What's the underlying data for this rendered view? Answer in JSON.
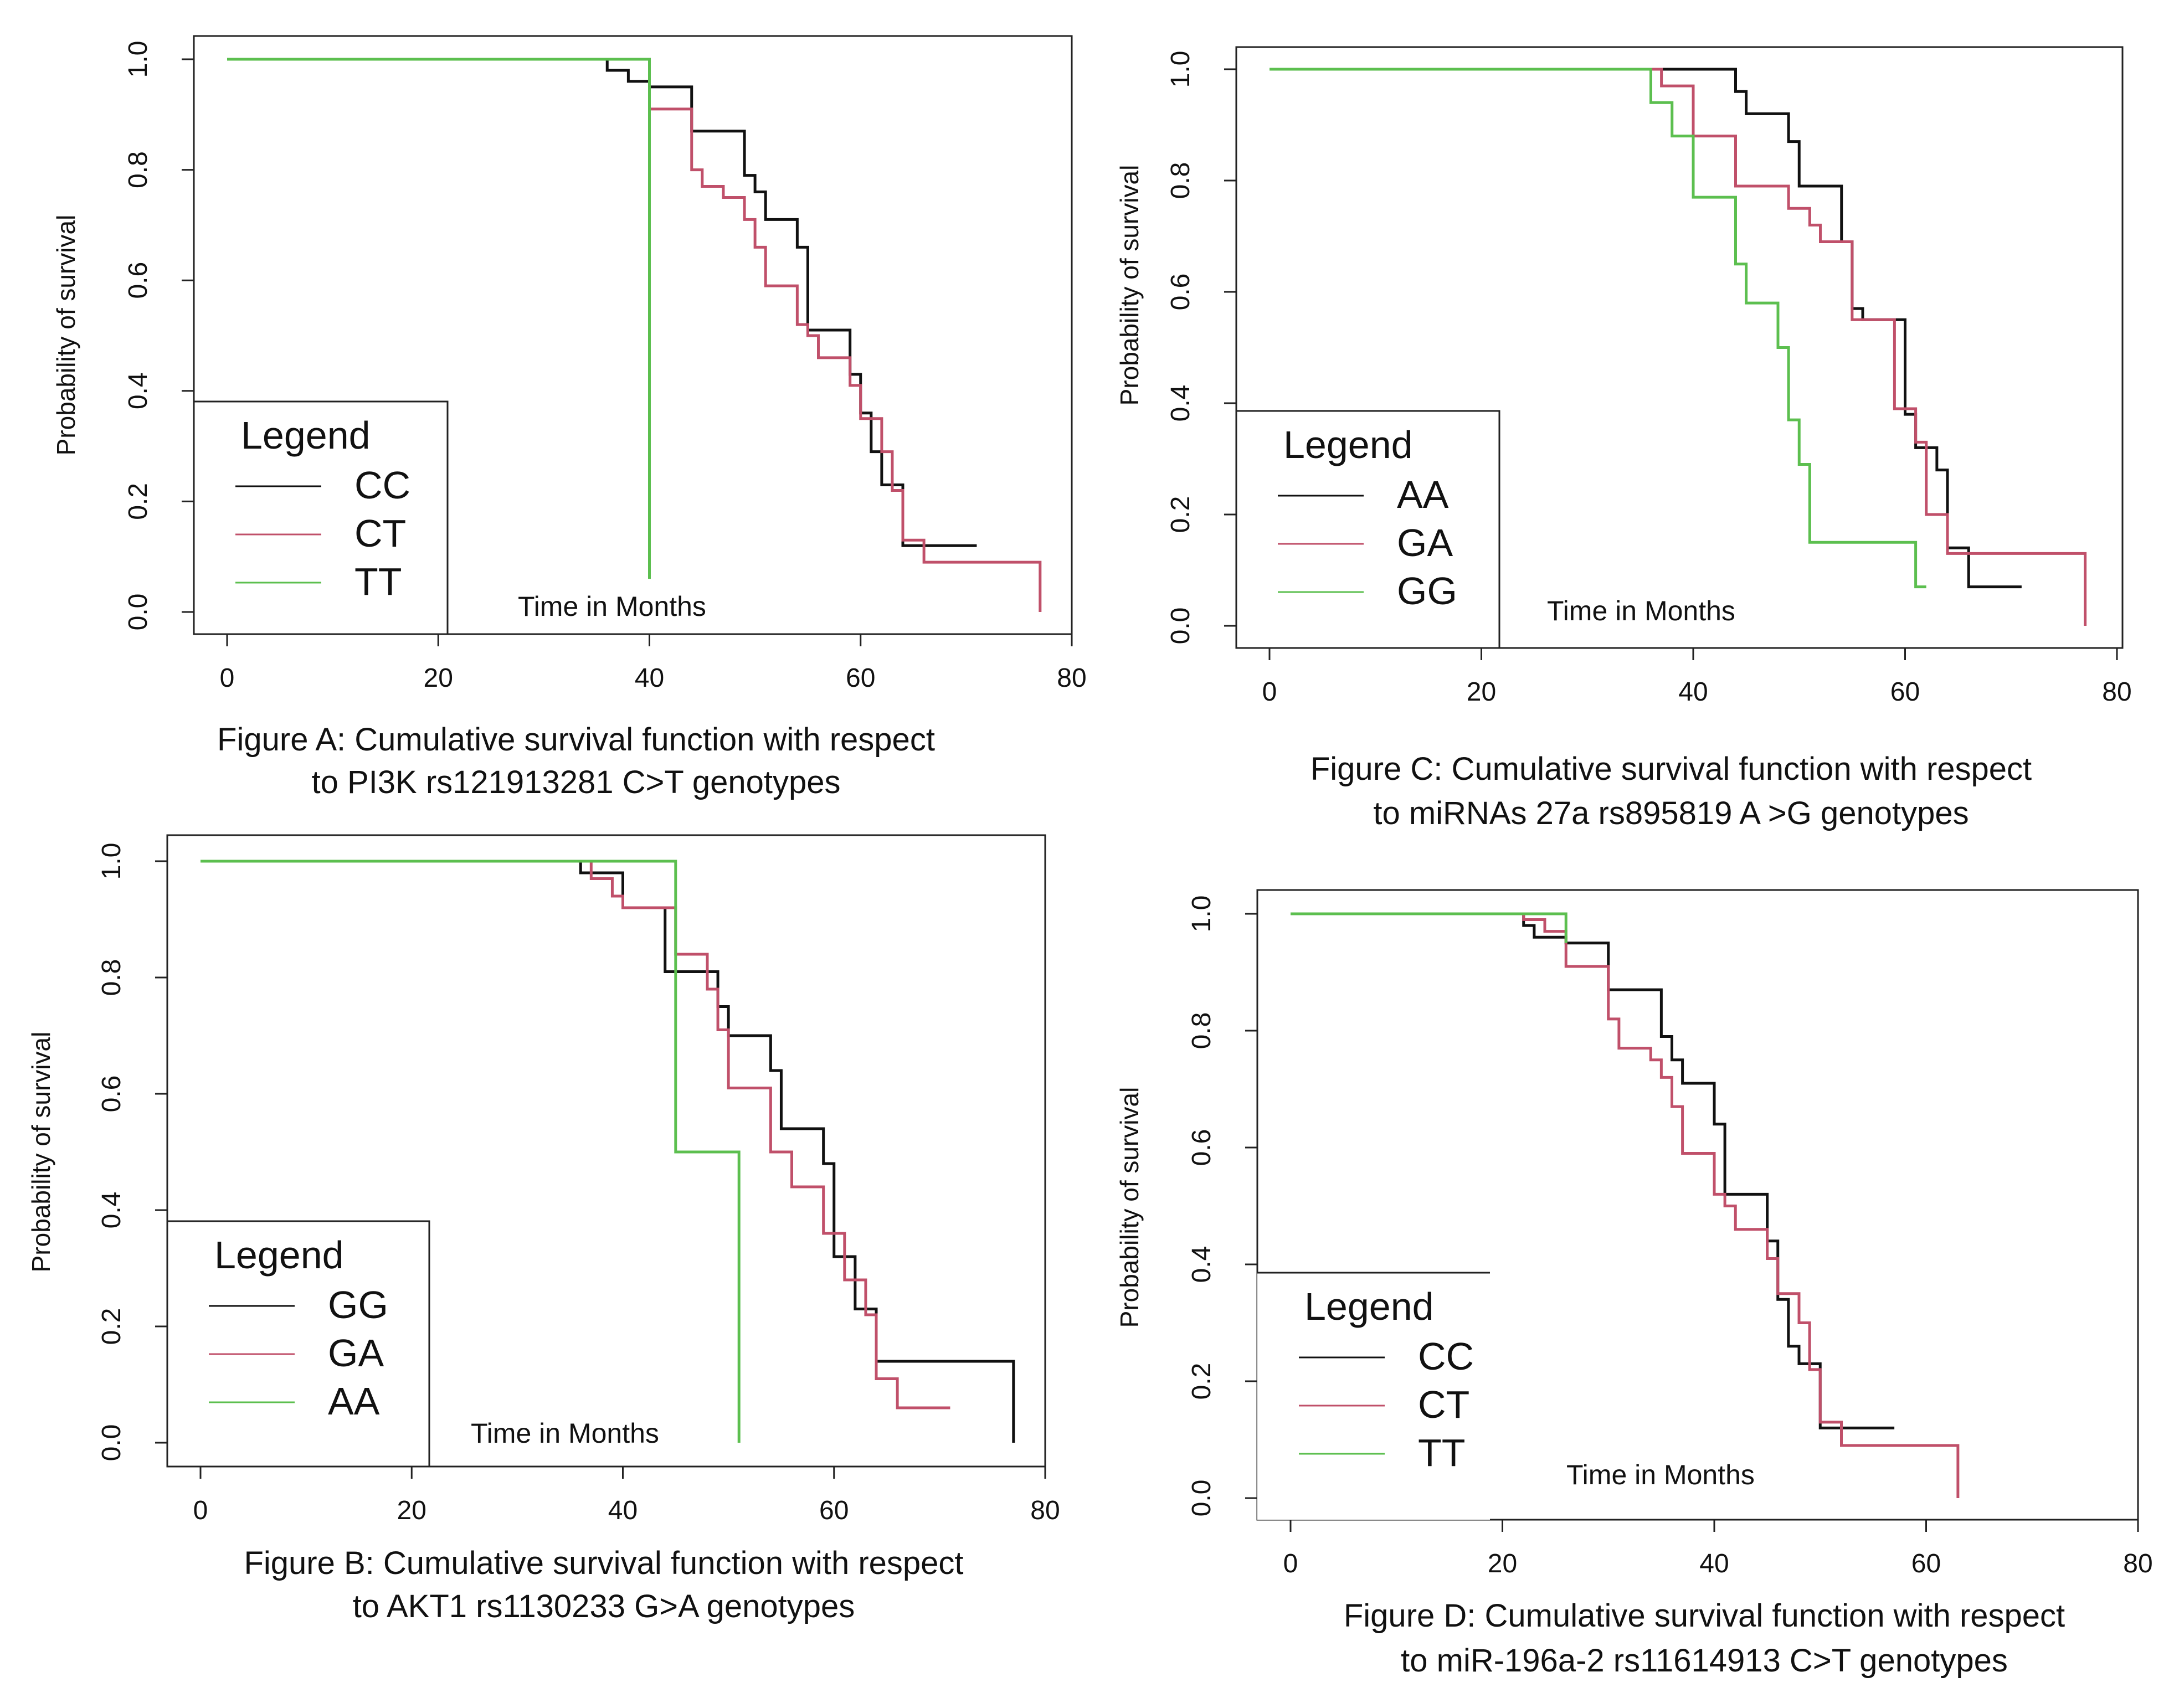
{
  "chart_data": [
    {
      "id": "A",
      "type": "line",
      "title": "Figure A: Cumulative survival function with respect to PI3K rs121913281 C>T genotypes",
      "caption_lines": [
        "Figure A: Cumulative survival function with respect",
        "to PI3K rs121913281 C>T genotypes"
      ],
      "xlabel": "Time in Months",
      "ylabel": "Probability of survival",
      "xlim": [
        0,
        80
      ],
      "ylim": [
        0,
        1
      ],
      "xticks": [
        "0",
        "20",
        "40",
        "60",
        "80"
      ],
      "yticks": [
        "0.0",
        "0.2",
        "0.4",
        "0.6",
        "0.8",
        "1.0"
      ],
      "legend_title": "Legend",
      "legend_position": "bottom-left",
      "series": [
        {
          "name": "CC",
          "color": "#111111",
          "steps": [
            [
              0,
              1.0
            ],
            [
              36,
              0.98
            ],
            [
              38,
              0.96
            ],
            [
              40,
              0.95
            ],
            [
              44,
              0.87
            ],
            [
              49,
              0.79
            ],
            [
              50,
              0.76
            ],
            [
              51,
              0.71
            ],
            [
              54,
              0.66
            ],
            [
              55,
              0.51
            ],
            [
              59,
              0.43
            ],
            [
              60,
              0.36
            ],
            [
              61,
              0.29
            ],
            [
              62,
              0.23
            ],
            [
              64,
              0.12
            ],
            [
              71,
              0.12
            ]
          ]
        },
        {
          "name": "CT",
          "color": "#c0506a",
          "steps": [
            [
              0,
              1.0
            ],
            [
              40,
              0.91
            ],
            [
              44,
              0.8
            ],
            [
              45,
              0.77
            ],
            [
              47,
              0.75
            ],
            [
              49,
              0.71
            ],
            [
              50,
              0.66
            ],
            [
              51,
              0.59
            ],
            [
              54,
              0.52
            ],
            [
              55,
              0.5
            ],
            [
              56,
              0.46
            ],
            [
              59,
              0.41
            ],
            [
              60,
              0.35
            ],
            [
              62,
              0.29
            ],
            [
              63,
              0.22
            ],
            [
              64,
              0.13
            ],
            [
              66,
              0.09
            ],
            [
              77,
              0.0
            ]
          ]
        },
        {
          "name": "TT",
          "color": "#5cbf4f",
          "steps": [
            [
              0,
              1.0
            ],
            [
              40,
              0.06
            ]
          ]
        }
      ]
    },
    {
      "id": "B",
      "type": "line",
      "title": "Figure B: Cumulative survival function with respect to AKT1 rs1130233 G>A genotypes",
      "caption_lines": [
        "Figure B: Cumulative survival function with respect",
        "to AKT1 rs1130233 G>A genotypes"
      ],
      "xlabel": "Time in Months",
      "ylabel": "Probability of survival",
      "xlim": [
        0,
        80
      ],
      "ylim": [
        0,
        1
      ],
      "xticks": [
        "0",
        "20",
        "40",
        "60",
        "80"
      ],
      "yticks": [
        "0.0",
        "0.2",
        "0.4",
        "0.6",
        "0.8",
        "1.0"
      ],
      "legend_title": "Legend",
      "legend_position": "bottom-left",
      "series": [
        {
          "name": "GG",
          "color": "#111111",
          "steps": [
            [
              0,
              1.0
            ],
            [
              36,
              0.98
            ],
            [
              40,
              0.92
            ],
            [
              44,
              0.81
            ],
            [
              49,
              0.75
            ],
            [
              50,
              0.7
            ],
            [
              54,
              0.64
            ],
            [
              55,
              0.54
            ],
            [
              59,
              0.48
            ],
            [
              60,
              0.32
            ],
            [
              62,
              0.23
            ],
            [
              64,
              0.14
            ],
            [
              77,
              0.0
            ]
          ]
        },
        {
          "name": "GA",
          "color": "#c0506a",
          "steps": [
            [
              0,
              1.0
            ],
            [
              37,
              0.97
            ],
            [
              39,
              0.94
            ],
            [
              40,
              0.92
            ],
            [
              45,
              0.84
            ],
            [
              48,
              0.78
            ],
            [
              49,
              0.71
            ],
            [
              50,
              0.61
            ],
            [
              54,
              0.5
            ],
            [
              56,
              0.44
            ],
            [
              59,
              0.36
            ],
            [
              61,
              0.28
            ],
            [
              63,
              0.22
            ],
            [
              64,
              0.11
            ],
            [
              66,
              0.06
            ],
            [
              71,
              0.06
            ]
          ]
        },
        {
          "name": "AA",
          "color": "#5cbf4f",
          "steps": [
            [
              0,
              1.0
            ],
            [
              45,
              0.5
            ],
            [
              51,
              0.0
            ]
          ]
        }
      ]
    },
    {
      "id": "C",
      "type": "line",
      "title": "Figure C: Cumulative survival function with respect to miRNAs 27a rs895819 A >G genotypes",
      "caption_lines": [
        "Figure C: Cumulative survival function with respect",
        "to miRNAs 27a rs895819 A >G genotypes"
      ],
      "xlabel": "Time in Months",
      "ylabel": "Probability of survival",
      "xlim": [
        0,
        80
      ],
      "ylim": [
        0,
        1
      ],
      "xticks": [
        "0",
        "20",
        "40",
        "60",
        "80"
      ],
      "yticks": [
        "0.0",
        "0.2",
        "0.4",
        "0.6",
        "0.8",
        "1.0"
      ],
      "legend_title": "Legend",
      "legend_position": "bottom-left",
      "series": [
        {
          "name": "AA",
          "color": "#111111",
          "steps": [
            [
              0,
              1.0
            ],
            [
              44,
              0.96
            ],
            [
              45,
              0.92
            ],
            [
              49,
              0.87
            ],
            [
              50,
              0.79
            ],
            [
              54,
              0.69
            ],
            [
              55,
              0.57
            ],
            [
              56,
              0.55
            ],
            [
              60,
              0.38
            ],
            [
              61,
              0.32
            ],
            [
              63,
              0.28
            ],
            [
              64,
              0.14
            ],
            [
              66,
              0.07
            ],
            [
              71,
              0.07
            ]
          ]
        },
        {
          "name": "GA",
          "color": "#c0506a",
          "steps": [
            [
              0,
              1.0
            ],
            [
              37,
              0.97
            ],
            [
              40,
              0.88
            ],
            [
              44,
              0.79
            ],
            [
              49,
              0.75
            ],
            [
              51,
              0.72
            ],
            [
              52,
              0.69
            ],
            [
              55,
              0.55
            ],
            [
              59,
              0.39
            ],
            [
              61,
              0.33
            ],
            [
              62,
              0.2
            ],
            [
              64,
              0.13
            ],
            [
              77,
              0.0
            ]
          ]
        },
        {
          "name": "GG",
          "color": "#5cbf4f",
          "steps": [
            [
              0,
              1.0
            ],
            [
              36,
              0.94
            ],
            [
              38,
              0.88
            ],
            [
              40,
              0.77
            ],
            [
              44,
              0.65
            ],
            [
              45,
              0.58
            ],
            [
              48,
              0.5
            ],
            [
              49,
              0.37
            ],
            [
              50,
              0.29
            ],
            [
              51,
              0.15
            ],
            [
              61,
              0.07
            ],
            [
              62,
              0.07
            ]
          ]
        }
      ]
    },
    {
      "id": "D",
      "type": "line",
      "title": "Figure D: Cumulative survival function with respect to miR-196a-2 rs11614913 C>T genotypes",
      "caption_lines": [
        "Figure D: Cumulative survival function with respect",
        "to miR-196a-2 rs11614913 C>T genotypes"
      ],
      "xlabel": "Time in Months",
      "ylabel": "Probability of survival",
      "xlim": [
        0,
        80
      ],
      "ylim": [
        0,
        1
      ],
      "xticks": [
        "0",
        "20",
        "40",
        "60",
        "80"
      ],
      "yticks": [
        "0.0",
        "0.2",
        "0.4",
        "0.6",
        "0.8",
        "1.0"
      ],
      "legend_title": "Legend",
      "legend_position": "bottom-left",
      "series": [
        {
          "name": "CC",
          "color": "#111111",
          "steps": [
            [
              0,
              1.0
            ],
            [
              22,
              0.98
            ],
            [
              23,
              0.96
            ],
            [
              26,
              0.95
            ],
            [
              30,
              0.87
            ],
            [
              35,
              0.79
            ],
            [
              36,
              0.75
            ],
            [
              37,
              0.71
            ],
            [
              40,
              0.64
            ],
            [
              41,
              0.52
            ],
            [
              45,
              0.44
            ],
            [
              46,
              0.34
            ],
            [
              47,
              0.26
            ],
            [
              48,
              0.23
            ],
            [
              50,
              0.12
            ],
            [
              57,
              0.12
            ]
          ]
        },
        {
          "name": "CT",
          "color": "#c0506a",
          "steps": [
            [
              0,
              1.0
            ],
            [
              22,
              0.99
            ],
            [
              24,
              0.97
            ],
            [
              26,
              0.91
            ],
            [
              30,
              0.82
            ],
            [
              31,
              0.77
            ],
            [
              34,
              0.75
            ],
            [
              35,
              0.72
            ],
            [
              36,
              0.67
            ],
            [
              37,
              0.59
            ],
            [
              40,
              0.52
            ],
            [
              41,
              0.5
            ],
            [
              42,
              0.46
            ],
            [
              45,
              0.41
            ],
            [
              46,
              0.35
            ],
            [
              48,
              0.3
            ],
            [
              49,
              0.22
            ],
            [
              50,
              0.13
            ],
            [
              52,
              0.09
            ],
            [
              63,
              0.0
            ]
          ]
        },
        {
          "name": "TT",
          "color": "#5cbf4f",
          "steps": [
            [
              0,
              1.0
            ],
            [
              19,
              1.0
            ],
            [
              26,
              0.95
            ]
          ]
        }
      ]
    }
  ]
}
